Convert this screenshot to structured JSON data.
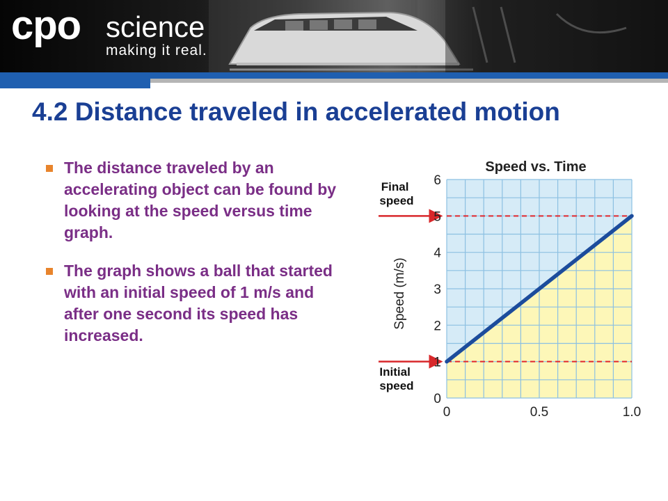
{
  "banner": {
    "logo_cpo": "cpo",
    "logo_science": "science",
    "tagline": "making it real."
  },
  "slide": {
    "title": "4.2 Distance traveled in accelerated motion",
    "bullets": [
      "The distance traveled by an accelerating object can be found by looking at the speed versus time graph.",
      "The graph shows a ball that started with an initial speed of 1 m/s and after one second its speed has increased."
    ]
  },
  "colors": {
    "title": "#1a3f94",
    "bullet_text": "#7a2e86",
    "bullet_marker": "#e8842c",
    "line": "#1c4c9c",
    "area": "#fdf7b8",
    "plot_bg": "#d6ebf7",
    "grid": "#8cc0e2",
    "dashed": "#e0262d",
    "arrow": "#d8282b"
  },
  "chart_data": {
    "type": "line",
    "title": "Speed vs. Time",
    "xlabel": "",
    "ylabel": "Speed (m/s)",
    "xlim": [
      0,
      1.0
    ],
    "ylim": [
      0,
      6
    ],
    "x_ticks": [
      "0",
      "0.5",
      "1.0"
    ],
    "y_ticks": [
      "0",
      "1",
      "2",
      "3",
      "4",
      "5",
      "6"
    ],
    "grid": true,
    "series": [
      {
        "x": [
          0,
          1.0
        ],
        "y": [
          1,
          5
        ]
      }
    ],
    "shaded_area_under_line": true,
    "reference_lines": [
      {
        "y": 5,
        "label": "Final speed",
        "style": "dashed"
      },
      {
        "y": 1,
        "label": "Initial speed",
        "style": "dashed"
      }
    ]
  }
}
